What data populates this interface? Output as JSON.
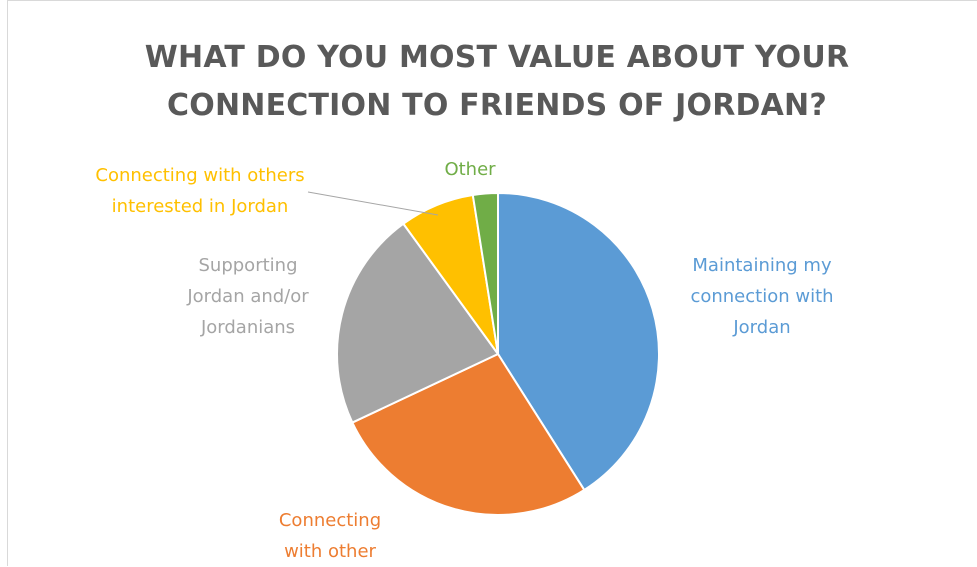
{
  "chart_data": {
    "type": "pie",
    "title_lines": [
      "WHAT DO YOU MOST VALUE ABOUT YOUR",
      "CONNECTION TO FRIENDS OF JORDAN?"
    ],
    "slices": [
      {
        "label_lines": [
          "Maintaining  my",
          "connection with",
          "Jordan"
        ],
        "value": 41,
        "color": "#5b9bd5"
      },
      {
        "label_lines": [
          "Connecting",
          "with other"
        ],
        "value": 27,
        "color": "#ed7d31"
      },
      {
        "label_lines": [
          "Supporting",
          "Jordan and/or",
          "Jordanians"
        ],
        "value": 22,
        "color": "#a5a5a5"
      },
      {
        "label_lines": [
          "Connecting with others",
          "interested in Jordan"
        ],
        "value": 7.5,
        "color": "#ffc000"
      },
      {
        "label_lines": [
          "Other"
        ],
        "value": 2.5,
        "color": "#70ad47"
      }
    ],
    "start_angle_deg": 0,
    "direction": "clockwise",
    "legend": "none"
  }
}
